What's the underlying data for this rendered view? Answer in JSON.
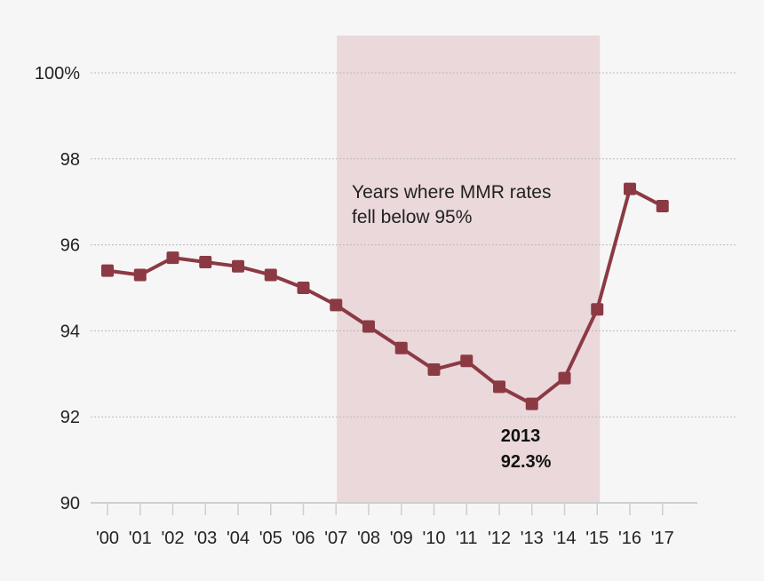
{
  "chart_data": {
    "type": "line",
    "title": "",
    "xlabel": "",
    "ylabel": "",
    "categories": [
      "'00",
      "'01",
      "'02",
      "'03",
      "'04",
      "'05",
      "'06",
      "'07",
      "'08",
      "'09",
      "'10",
      "'11",
      "'12",
      "'13",
      "'14",
      "'15",
      "'16",
      "'17"
    ],
    "series": [
      {
        "values": [
          95.4,
          95.3,
          95.7,
          95.6,
          95.5,
          95.3,
          95.0,
          94.6,
          94.1,
          93.6,
          93.1,
          93.3,
          92.7,
          92.3,
          92.9,
          94.5,
          97.3,
          96.9
        ]
      }
    ],
    "ylim": [
      90,
      100
    ],
    "yticks": [
      90,
      92,
      94,
      96,
      98,
      100
    ],
    "ytick_labels": [
      "90",
      "92",
      "94",
      "96",
      "98",
      "100%"
    ],
    "grid": "horizontal dotted",
    "highlight_range": {
      "from": "'07",
      "to": "'15",
      "label_line1": "Years where MMR rates",
      "label_line2": "fell below 95%"
    },
    "callout": {
      "category": "'13",
      "line1": "2013",
      "line2": "92.3%"
    },
    "colors": {
      "line": "#8b3a44",
      "highlight": "#ead8da",
      "background": "#f6f6f6",
      "grid": "#bbbbbb"
    }
  }
}
